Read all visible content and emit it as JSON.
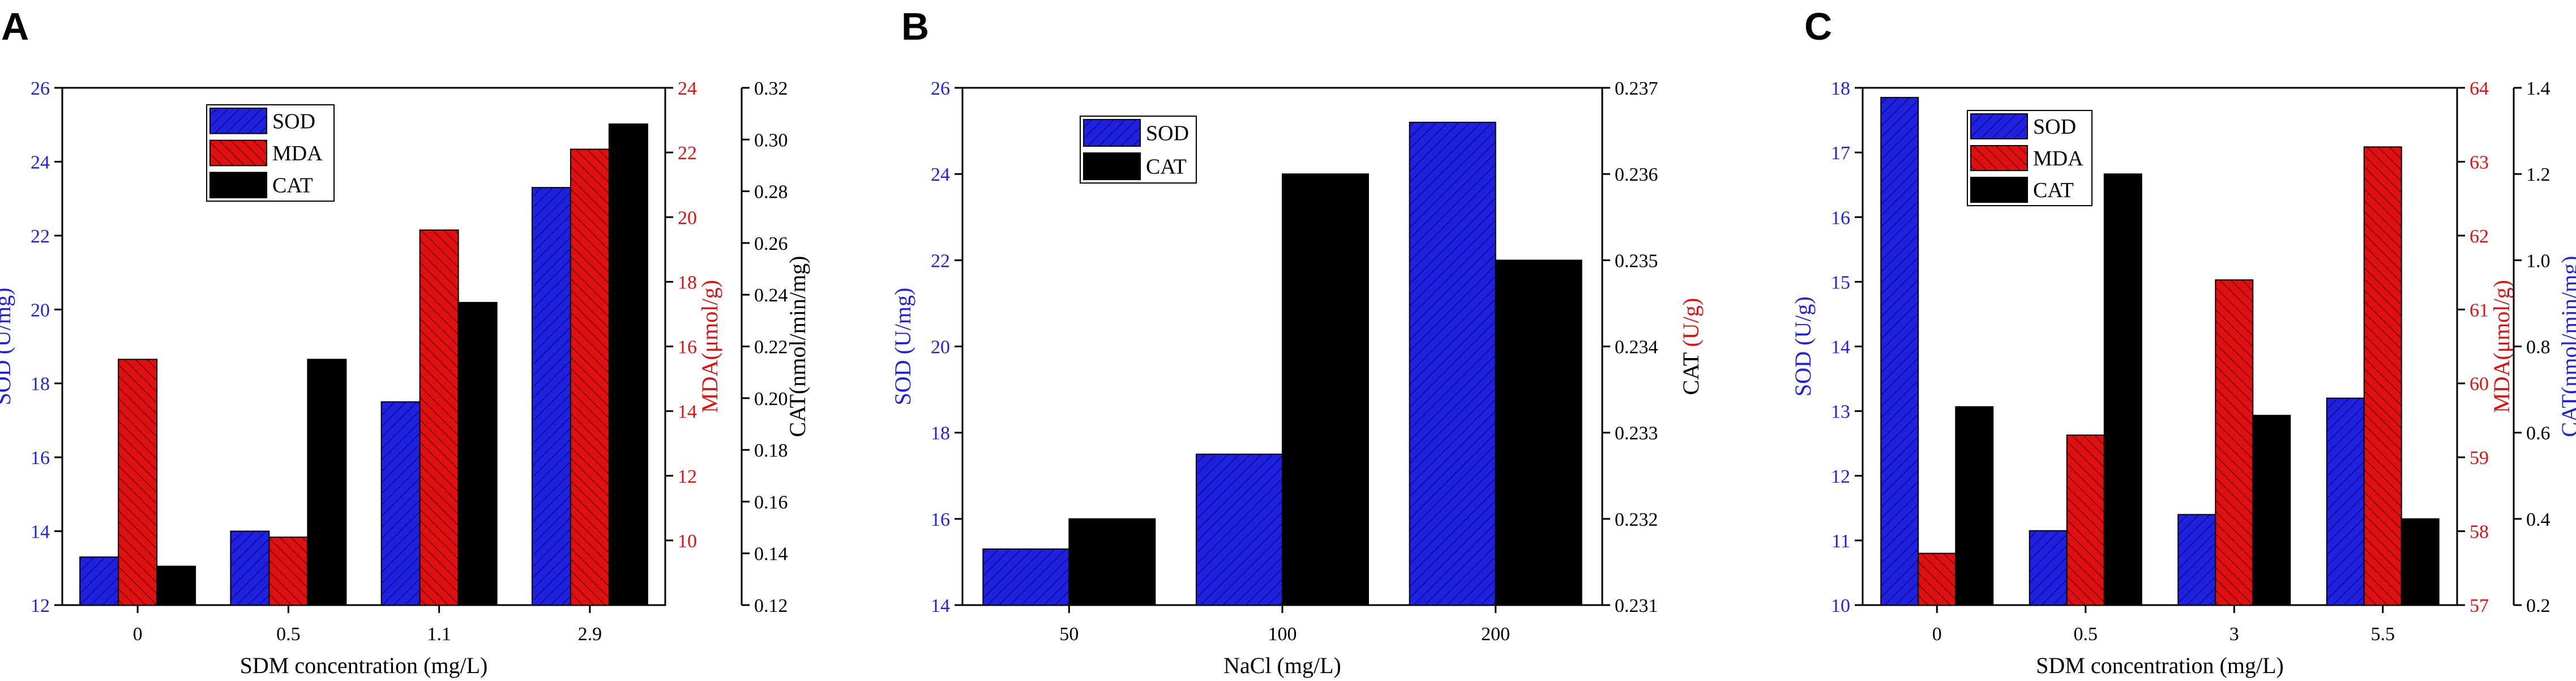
{
  "colors": {
    "SOD": "#2020e0",
    "MDA": "#e01010",
    "CAT": "#000000",
    "axis": "#000000"
  },
  "chart_data": [
    {
      "panel": "A",
      "type": "bar",
      "categories": [
        "0",
        "0.5",
        "1.1",
        "2.9"
      ],
      "xlabel": "SDM concentration (mg/L)",
      "axes": {
        "left": {
          "label": "SOD (U/mg)",
          "color": "#2020e0",
          "ylim": [
            12,
            26
          ],
          "ticks": [
            12,
            14,
            16,
            18,
            20,
            22,
            24,
            26
          ]
        },
        "right1": {
          "label": "MDA(μmol/g)",
          "color": "#e01010",
          "ylim": [
            8,
            24
          ],
          "ticks": [
            10,
            12,
            14,
            16,
            18,
            20,
            22,
            24
          ]
        },
        "right2": {
          "label": "CAT(nmol/min/mg)",
          "color": "#000000",
          "ylim": [
            0.12,
            0.32
          ],
          "ticks": [
            0.12,
            0.14,
            0.16,
            0.18,
            0.2,
            0.22,
            0.24,
            0.26,
            0.28,
            0.3,
            0.32
          ]
        }
      },
      "series": [
        {
          "name": "SOD",
          "axis": "left",
          "values": [
            13.3,
            14.0,
            17.5,
            23.3
          ]
        },
        {
          "name": "MDA",
          "axis": "right1",
          "values": [
            15.6,
            10.1,
            19.6,
            22.1
          ]
        },
        {
          "name": "CAT",
          "axis": "right2",
          "values": [
            0.135,
            0.215,
            0.237,
            0.306
          ]
        }
      ],
      "legend": "top-left"
    },
    {
      "panel": "B",
      "type": "bar",
      "categories": [
        "50",
        "100",
        "200"
      ],
      "xlabel": "NaCl (mg/L)",
      "axes": {
        "left": {
          "label": "SOD (U/mg)",
          "color": "#2020e0",
          "ylim": [
            14,
            26
          ],
          "ticks": [
            14,
            16,
            18,
            20,
            22,
            24,
            26
          ]
        },
        "right1": {
          "label_parts": [
            "CAT ",
            "(U/g)"
          ],
          "label_colors": [
            "#000000",
            "#e01010"
          ],
          "color": "#000000",
          "ylim": [
            0.231,
            0.237
          ],
          "ticks": [
            0.231,
            0.232,
            0.233,
            0.234,
            0.235,
            0.236,
            0.237
          ]
        }
      },
      "series": [
        {
          "name": "SOD",
          "axis": "left",
          "values": [
            15.3,
            17.5,
            25.2
          ]
        },
        {
          "name": "CAT",
          "axis": "right1",
          "values": [
            0.232,
            0.236,
            0.235
          ]
        }
      ],
      "legend": "top-left"
    },
    {
      "panel": "C",
      "type": "bar",
      "categories": [
        "0",
        "0.5",
        "3",
        "5.5"
      ],
      "xlabel": "SDM concentration (mg/L)",
      "axes": {
        "left": {
          "label": "SOD (U/g)",
          "color": "#2020e0",
          "ylim": [
            10,
            18
          ],
          "ticks": [
            10,
            11,
            12,
            13,
            14,
            15,
            16,
            17,
            18
          ]
        },
        "right1": {
          "label": "MDA(μmol/g)",
          "color": "#e01010",
          "ylim": [
            57,
            64
          ],
          "ticks": [
            57,
            58,
            59,
            60,
            61,
            62,
            63,
            64
          ]
        },
        "right2": {
          "label": "CAT(nmol/min/mg)",
          "color": "#2020e0",
          "ylim": [
            0.2,
            1.4
          ],
          "ticks": [
            0.2,
            0.4,
            0.6,
            0.8,
            1.0,
            1.2,
            1.4
          ]
        }
      },
      "series": [
        {
          "name": "SOD",
          "axis": "left",
          "values": [
            17.85,
            11.15,
            11.4,
            13.2
          ]
        },
        {
          "name": "MDA",
          "axis": "right1",
          "values": [
            57.7,
            59.3,
            61.4,
            63.2
          ]
        },
        {
          "name": "CAT",
          "axis": "right2",
          "values": [
            0.66,
            1.2,
            0.64,
            0.4
          ]
        }
      ],
      "legend": "top-left"
    }
  ]
}
